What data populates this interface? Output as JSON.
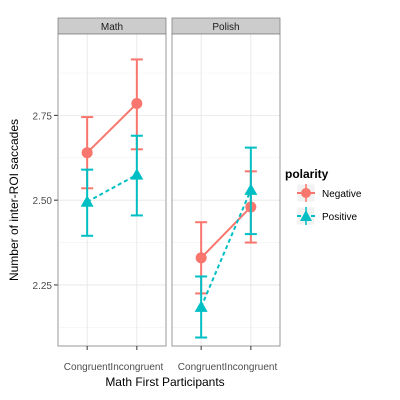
{
  "chart_data": {
    "type": "line",
    "facet_label": "",
    "xlabel": "Math First Participants",
    "ylabel": "Number of inter-ROI saccades",
    "categories": [
      "Congruent",
      "Incongruent"
    ],
    "ylim": [
      2.07,
      2.99
    ],
    "yticks": [
      2.25,
      2.5,
      2.75
    ],
    "ytick_labels": [
      "2.25",
      "2.50",
      "2.75"
    ],
    "grid": true,
    "legend": {
      "title": "polarity",
      "position": "right",
      "entries": [
        {
          "name": "Negative",
          "color": "#F8766D",
          "marker": "circle",
          "linestyle": "solid"
        },
        {
          "name": "Positive",
          "color": "#00BFC4",
          "marker": "triangle",
          "linestyle": "dashed"
        }
      ]
    },
    "panels": [
      {
        "title": "Math",
        "series": [
          {
            "name": "Negative",
            "values": [
              2.64,
              2.785
            ],
            "lower": [
              2.535,
              2.65
            ],
            "upper": [
              2.745,
              2.915
            ]
          },
          {
            "name": "Positive",
            "values": [
              2.495,
              2.575
            ],
            "lower": [
              2.395,
              2.455
            ],
            "upper": [
              2.59,
              2.69
            ]
          }
        ]
      },
      {
        "title": "Polish",
        "series": [
          {
            "name": "Negative",
            "values": [
              2.33,
              2.48
            ],
            "lower": [
              2.225,
              2.375
            ],
            "upper": [
              2.435,
              2.585
            ]
          },
          {
            "name": "Positive",
            "values": [
              2.185,
              2.53
            ],
            "lower": [
              2.095,
              2.4
            ],
            "upper": [
              2.275,
              2.655
            ]
          }
        ]
      }
    ]
  }
}
